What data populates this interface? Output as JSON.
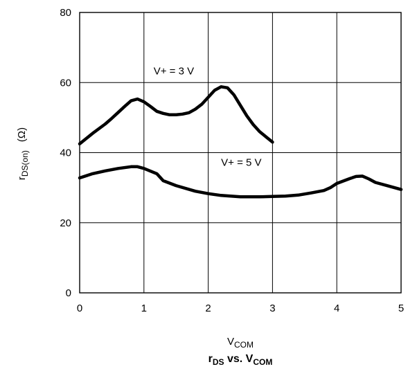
{
  "chart_data": {
    "type": "line",
    "title": {
      "main": "r",
      "main_sub": "DS",
      "mid": " vs. V",
      "mid_sub": "COM"
    },
    "xlabel": {
      "main": "V",
      "sub": "COM"
    },
    "ylabel": {
      "main": "r",
      "sub": "DS(on)",
      "unit": "(Ω)"
    },
    "xlim": [
      0,
      5
    ],
    "ylim": [
      0,
      80
    ],
    "x_ticks": [
      "0",
      "1",
      "2",
      "3",
      "4",
      "5"
    ],
    "y_ticks": [
      "0",
      "20",
      "40",
      "60",
      "80"
    ],
    "grid": true,
    "series": [
      {
        "name": "V+ = 3 V",
        "x": [
          0,
          0.2,
          0.4,
          0.5,
          0.6,
          0.7,
          0.8,
          0.9,
          1.0,
          1.1,
          1.2,
          1.3,
          1.4,
          1.5,
          1.6,
          1.7,
          1.8,
          1.9,
          2.0,
          2.1,
          2.2,
          2.3,
          2.4,
          2.5,
          2.6,
          2.7,
          2.8,
          2.9,
          3.0
        ],
        "y": [
          42.5,
          45.5,
          48.2,
          49.8,
          51.5,
          53.2,
          54.8,
          55.3,
          54.5,
          53.2,
          51.8,
          51.2,
          50.8,
          50.8,
          51.0,
          51.4,
          52.4,
          53.8,
          55.8,
          57.8,
          58.8,
          58.5,
          56.5,
          53.5,
          50.5,
          48.0,
          46.0,
          44.5,
          43.0
        ]
      },
      {
        "name": "V+ = 5 V",
        "x": [
          0,
          0.2,
          0.4,
          0.6,
          0.8,
          0.9,
          1.0,
          1.2,
          1.3,
          1.5,
          1.8,
          2.0,
          2.2,
          2.5,
          2.8,
          3.0,
          3.2,
          3.4,
          3.6,
          3.8,
          3.9,
          4.0,
          4.2,
          4.3,
          4.4,
          4.5,
          4.6,
          4.8,
          5.0
        ],
        "y": [
          32.8,
          34.0,
          34.8,
          35.5,
          36.0,
          36.0,
          35.5,
          34.0,
          32.0,
          30.6,
          29.0,
          28.3,
          27.8,
          27.4,
          27.4,
          27.5,
          27.6,
          27.9,
          28.5,
          29.2,
          30.0,
          31.2,
          32.6,
          33.2,
          33.3,
          32.5,
          31.5,
          30.5,
          29.5
        ]
      }
    ],
    "annotations": [
      {
        "text": "V+ = 3 V",
        "x": 1.15,
        "y": 62.3
      },
      {
        "text": "V+ = 5 V",
        "x": 2.2,
        "y": 36.2
      }
    ]
  }
}
